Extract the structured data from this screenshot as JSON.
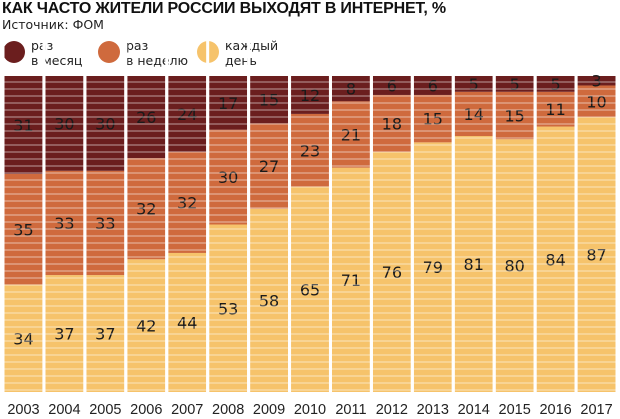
{
  "title": "КАК ЧАСТО ЖИТЕЛИ РОССИИ ВЫХОДЯТ В ИНТЕРНЕТ, %",
  "source": "Источник:  ФОМ",
  "legend": [
    {
      "label": "раз\nв месяц",
      "color": "#6b1e1e"
    },
    {
      "label": "раз\nв неделю",
      "color": "#cf6a3d"
    },
    {
      "label": "каждый\nдень",
      "color": "#f6c36b"
    }
  ],
  "chart_data": {
    "type": "bar",
    "stacked": true,
    "categories": [
      "2003",
      "2004",
      "2005",
      "2006",
      "2007",
      "2008",
      "2009",
      "2010",
      "2011",
      "2012",
      "2013",
      "2014",
      "2015",
      "2016",
      "2017"
    ],
    "series": [
      {
        "name": "каждый день",
        "color": "#f6c36b",
        "values": [
          34,
          37,
          37,
          42,
          44,
          53,
          58,
          65,
          71,
          76,
          79,
          81,
          80,
          84,
          87
        ]
      },
      {
        "name": "раз в неделю",
        "color": "#cf6a3d",
        "values": [
          35,
          33,
          33,
          32,
          32,
          30,
          27,
          23,
          21,
          18,
          15,
          14,
          15,
          11,
          10
        ]
      },
      {
        "name": "раз в месяц",
        "color": "#6b1e1e",
        "values": [
          31,
          30,
          30,
          26,
          24,
          17,
          15,
          12,
          8,
          6,
          6,
          5,
          5,
          5,
          3
        ]
      }
    ],
    "ylim": [
      0,
      100
    ],
    "xlabel": "",
    "ylabel": ""
  }
}
